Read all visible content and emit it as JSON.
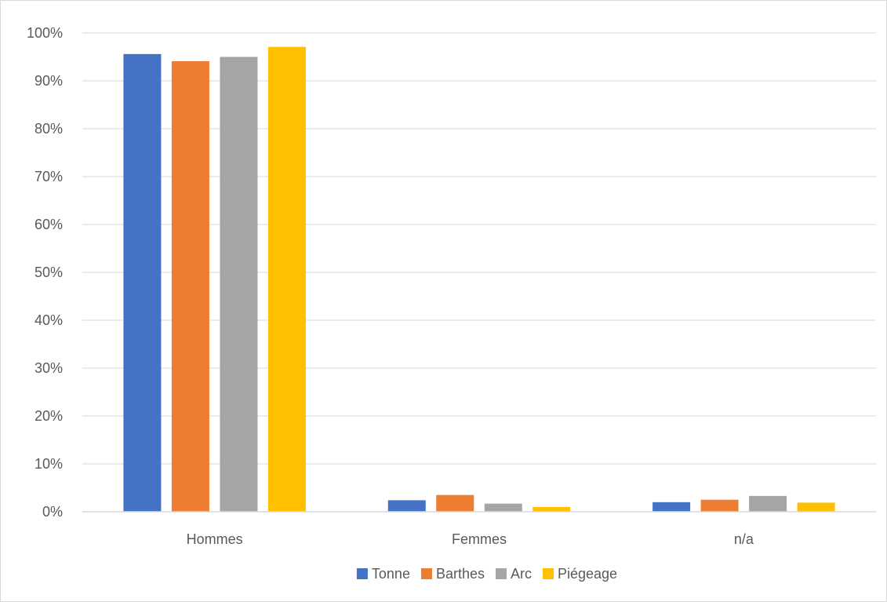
{
  "chart_data": {
    "type": "bar",
    "title": "",
    "xlabel": "",
    "ylabel": "",
    "categories": [
      "Hommes",
      "Femmes",
      "n/a"
    ],
    "series": [
      {
        "name": "Tonne",
        "color": "#4472C4",
        "values": [
          95.6,
          2.4,
          2.0
        ]
      },
      {
        "name": "Barthes",
        "color": "#ED7D31",
        "values": [
          94.1,
          3.5,
          2.5
        ]
      },
      {
        "name": "Arc",
        "color": "#A5A5A5",
        "values": [
          95.0,
          1.7,
          3.3
        ]
      },
      {
        "name": "Piégeage",
        "color": "#FFC000",
        "values": [
          97.1,
          1.0,
          1.9
        ]
      }
    ],
    "ylim": [
      0,
      100
    ],
    "yticks": [
      0,
      10,
      20,
      30,
      40,
      50,
      60,
      70,
      80,
      90,
      100
    ],
    "ytick_labels": [
      "0%",
      "10%",
      "20%",
      "30%",
      "40%",
      "50%",
      "60%",
      "70%",
      "80%",
      "90%",
      "100%"
    ],
    "grid": true,
    "legend_position": "bottom"
  }
}
